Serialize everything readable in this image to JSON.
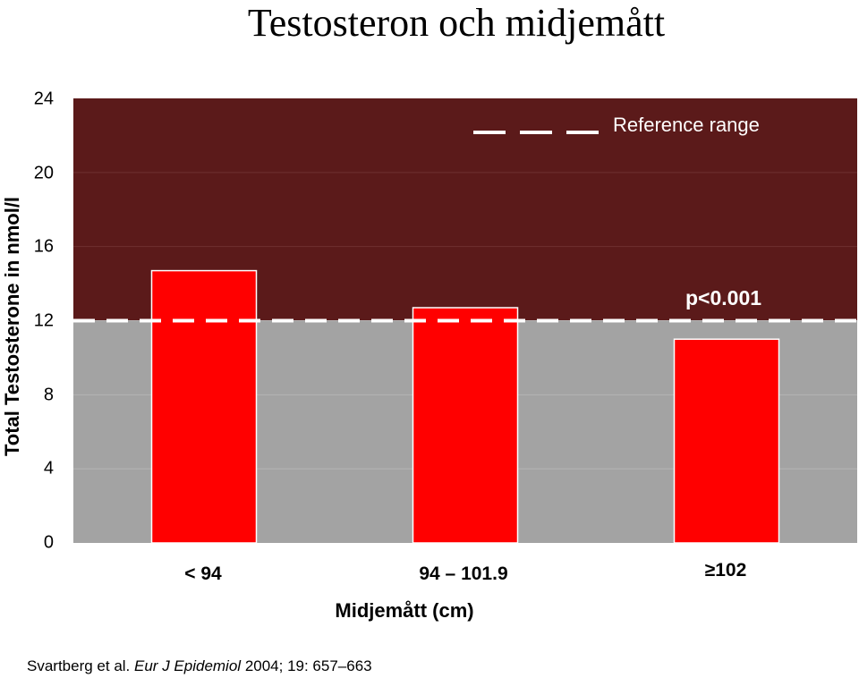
{
  "title": "Testosteron och midjemått",
  "legend": {
    "label": "Reference range"
  },
  "annotation": "p<0.001",
  "citation": {
    "authors": "Svartberg et al.",
    "journal": "Eur J Epidemiol",
    "details": "2004; 19: 657–663"
  },
  "colors": {
    "bar": "#ff0000",
    "reference_area": "#5b1a1a",
    "below_area": "#a3a3a3",
    "dashed_line": "#ffffff"
  },
  "chart_data": {
    "type": "bar",
    "title": "Testosteron och midjemått",
    "xlabel": "Midjemått (cm)",
    "ylabel": "Total Testosterone in nmol/l",
    "categories": [
      "< 94",
      "94 – 101.9",
      "≥102"
    ],
    "values": [
      14.7,
      12.7,
      11.0
    ],
    "ylim": [
      0,
      24
    ],
    "yticks": [
      0,
      4,
      8,
      12,
      16,
      20,
      24
    ],
    "reference_range": [
      12,
      24
    ],
    "reference_line": 12,
    "legend": "top-right",
    "grid": true
  }
}
